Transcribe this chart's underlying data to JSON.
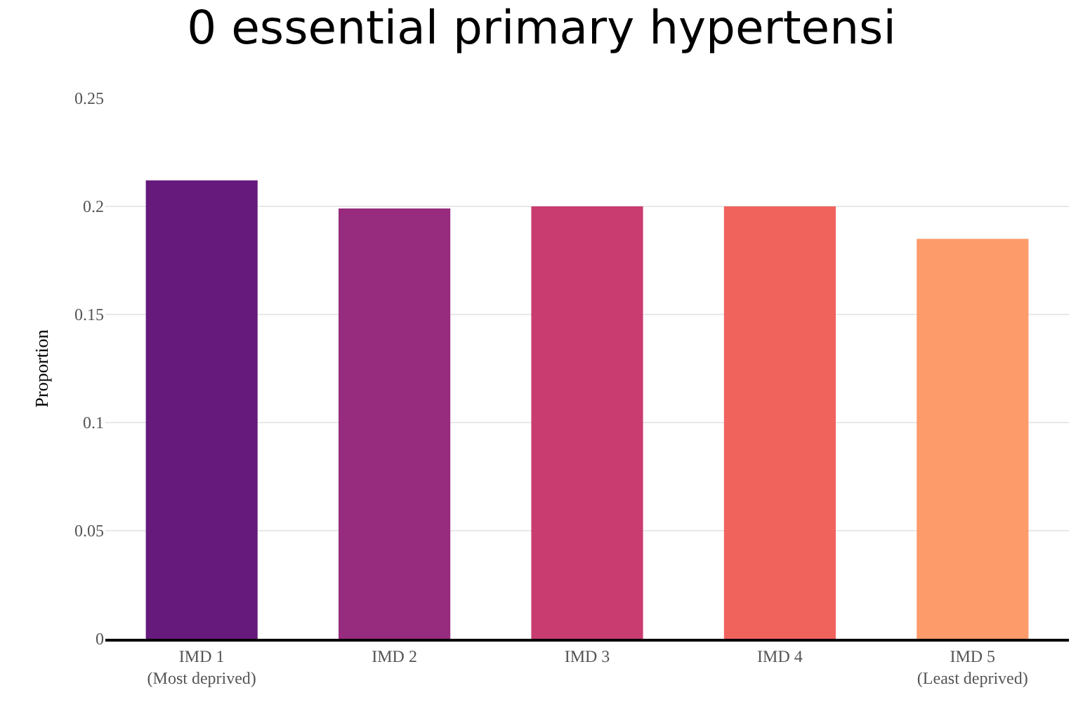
{
  "chart_data": {
    "type": "bar",
    "title": "0 essential primary hypertensi",
    "ylabel": "Proportion",
    "categories": [
      "IMD 1\n(Most deprived)",
      "IMD 2",
      "IMD 3",
      "IMD 4",
      "IMD 5\n(Least deprived)"
    ],
    "values": [
      0.212,
      0.199,
      0.2,
      0.2,
      0.185
    ],
    "colors": [
      "#661a7c",
      "#972b7e",
      "#c93c6f",
      "#f0635d",
      "#fd9b6a"
    ],
    "ylim": [
      0,
      0.25
    ],
    "yticks": [
      0,
      0.05,
      0.1,
      0.15,
      0.2,
      0.25
    ],
    "grid": "y"
  }
}
